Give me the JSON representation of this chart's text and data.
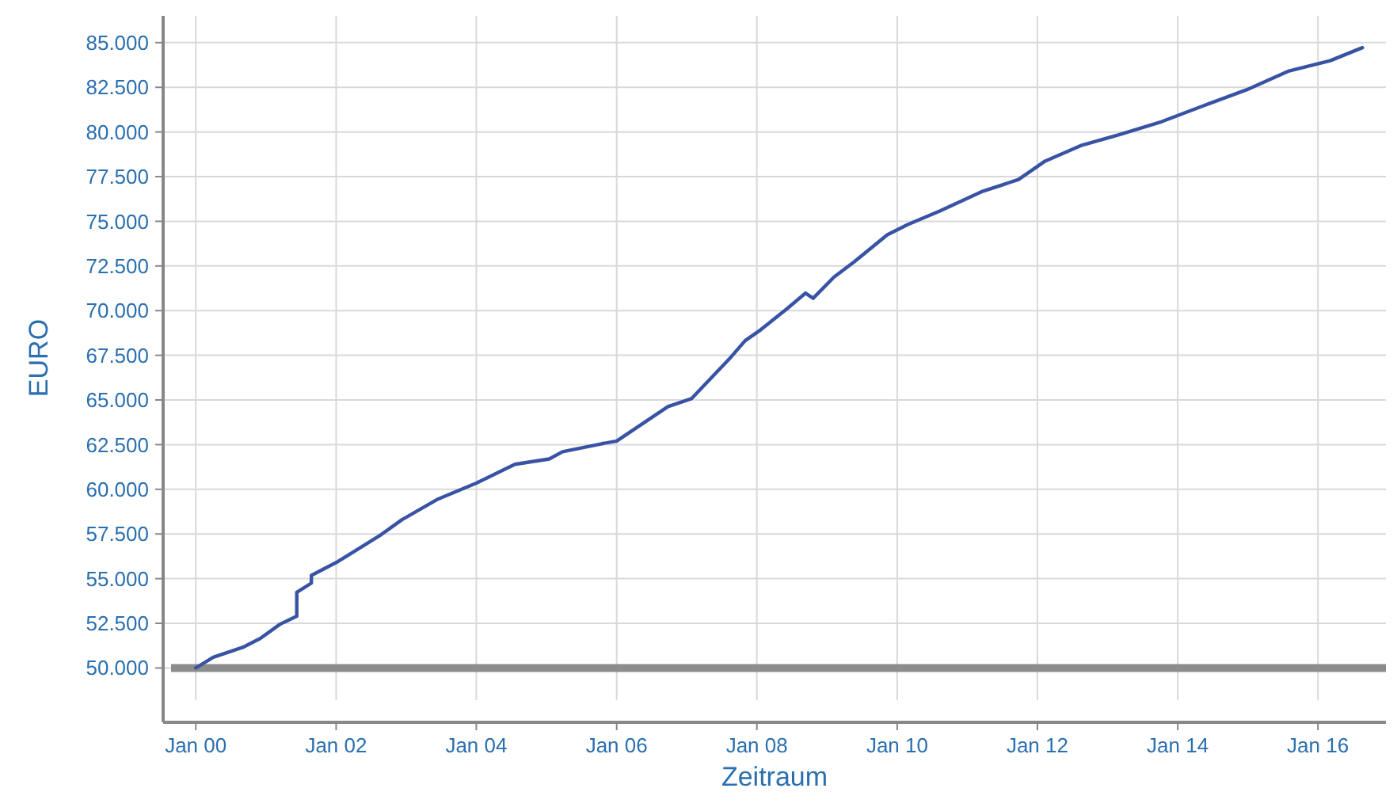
{
  "chart_data": {
    "type": "line",
    "xlabel": "Zeitraum",
    "ylabel": "EURO",
    "x": [
      "2000-01-01",
      "2000-04-01",
      "2000-09-01",
      "2000-12-01",
      "2001-03-15",
      "2001-06-10",
      "2001-06-10",
      "2001-08-25",
      "2001-08-25",
      "2002-01-01",
      "2002-04-01",
      "2002-08-15",
      "2002-12-10",
      "2003-06-15",
      "2004-01-01",
      "2004-07-20",
      "2005-01-15",
      "2005-03-25",
      "2005-10-15",
      "2006-01-01",
      "2006-03-25",
      "2006-09-25",
      "2007-01-25",
      "2007-08-10",
      "2007-11-01",
      "2008-01-20",
      "2008-06-05",
      "2008-09-10",
      "2008-10-20",
      "2009-02-05",
      "2009-05-25",
      "2009-11-10",
      "2010-02-25",
      "2010-08-10",
      "2011-03-15",
      "2011-09-25",
      "2012-02-10",
      "2012-08-20",
      "2013-03-01",
      "2013-10-10",
      "2014-05-15",
      "2014-12-25",
      "2015-07-30",
      "2016-03-05",
      "2016-08-20"
    ],
    "series": [
      {
        "color": "#3953a4",
        "values": [
          50000,
          50600,
          51150,
          51650,
          52450,
          52900,
          54230,
          54750,
          55180,
          55900,
          56500,
          57400,
          58300,
          59450,
          60350,
          61400,
          61700,
          62100,
          62550,
          62700,
          63300,
          64630,
          65070,
          67290,
          68320,
          68920,
          70100,
          70980,
          70690,
          71870,
          72760,
          74240,
          74820,
          75570,
          76650,
          77340,
          78370,
          79260,
          79850,
          80580,
          81470,
          82360,
          83400,
          83990,
          84720
        ]
      }
    ],
    "xlim": [
      "1999-07-15",
      "2016-12-20"
    ],
    "xticks": [
      {
        "value": "2000-01-01",
        "label": "Jan 00"
      },
      {
        "value": "2002-01-01",
        "label": "Jan 02"
      },
      {
        "value": "2004-01-01",
        "label": "Jan 04"
      },
      {
        "value": "2006-01-01",
        "label": "Jan 06"
      },
      {
        "value": "2008-01-01",
        "label": "Jan 08"
      },
      {
        "value": "2010-01-01",
        "label": "Jan 10"
      },
      {
        "value": "2012-01-01",
        "label": "Jan 12"
      },
      {
        "value": "2014-01-01",
        "label": "Jan 14"
      },
      {
        "value": "2016-01-01",
        "label": "Jan 16"
      }
    ],
    "ylim": [
      48200,
      86500
    ],
    "yticks": [
      {
        "value": 50000,
        "label": "50.000"
      },
      {
        "value": 52500,
        "label": "52.500"
      },
      {
        "value": 55000,
        "label": "55.000"
      },
      {
        "value": 57500,
        "label": "57.500"
      },
      {
        "value": 60000,
        "label": "60.000"
      },
      {
        "value": 62500,
        "label": "62.500"
      },
      {
        "value": 65000,
        "label": "65.000"
      },
      {
        "value": 67500,
        "label": "67.500"
      },
      {
        "value": 70000,
        "label": "70.000"
      },
      {
        "value": 72500,
        "label": "72.500"
      },
      {
        "value": 75000,
        "label": "75.000"
      },
      {
        "value": 77500,
        "label": "77.500"
      },
      {
        "value": 80000,
        "label": "80.000"
      },
      {
        "value": 82500,
        "label": "82.500"
      },
      {
        "value": 85000,
        "label": "85.000"
      }
    ],
    "ref_lines": [
      {
        "axis": "y",
        "value": 50000,
        "color": "#8c8c8c"
      }
    ],
    "grid": true,
    "line_style": "solid",
    "marker": "none"
  }
}
